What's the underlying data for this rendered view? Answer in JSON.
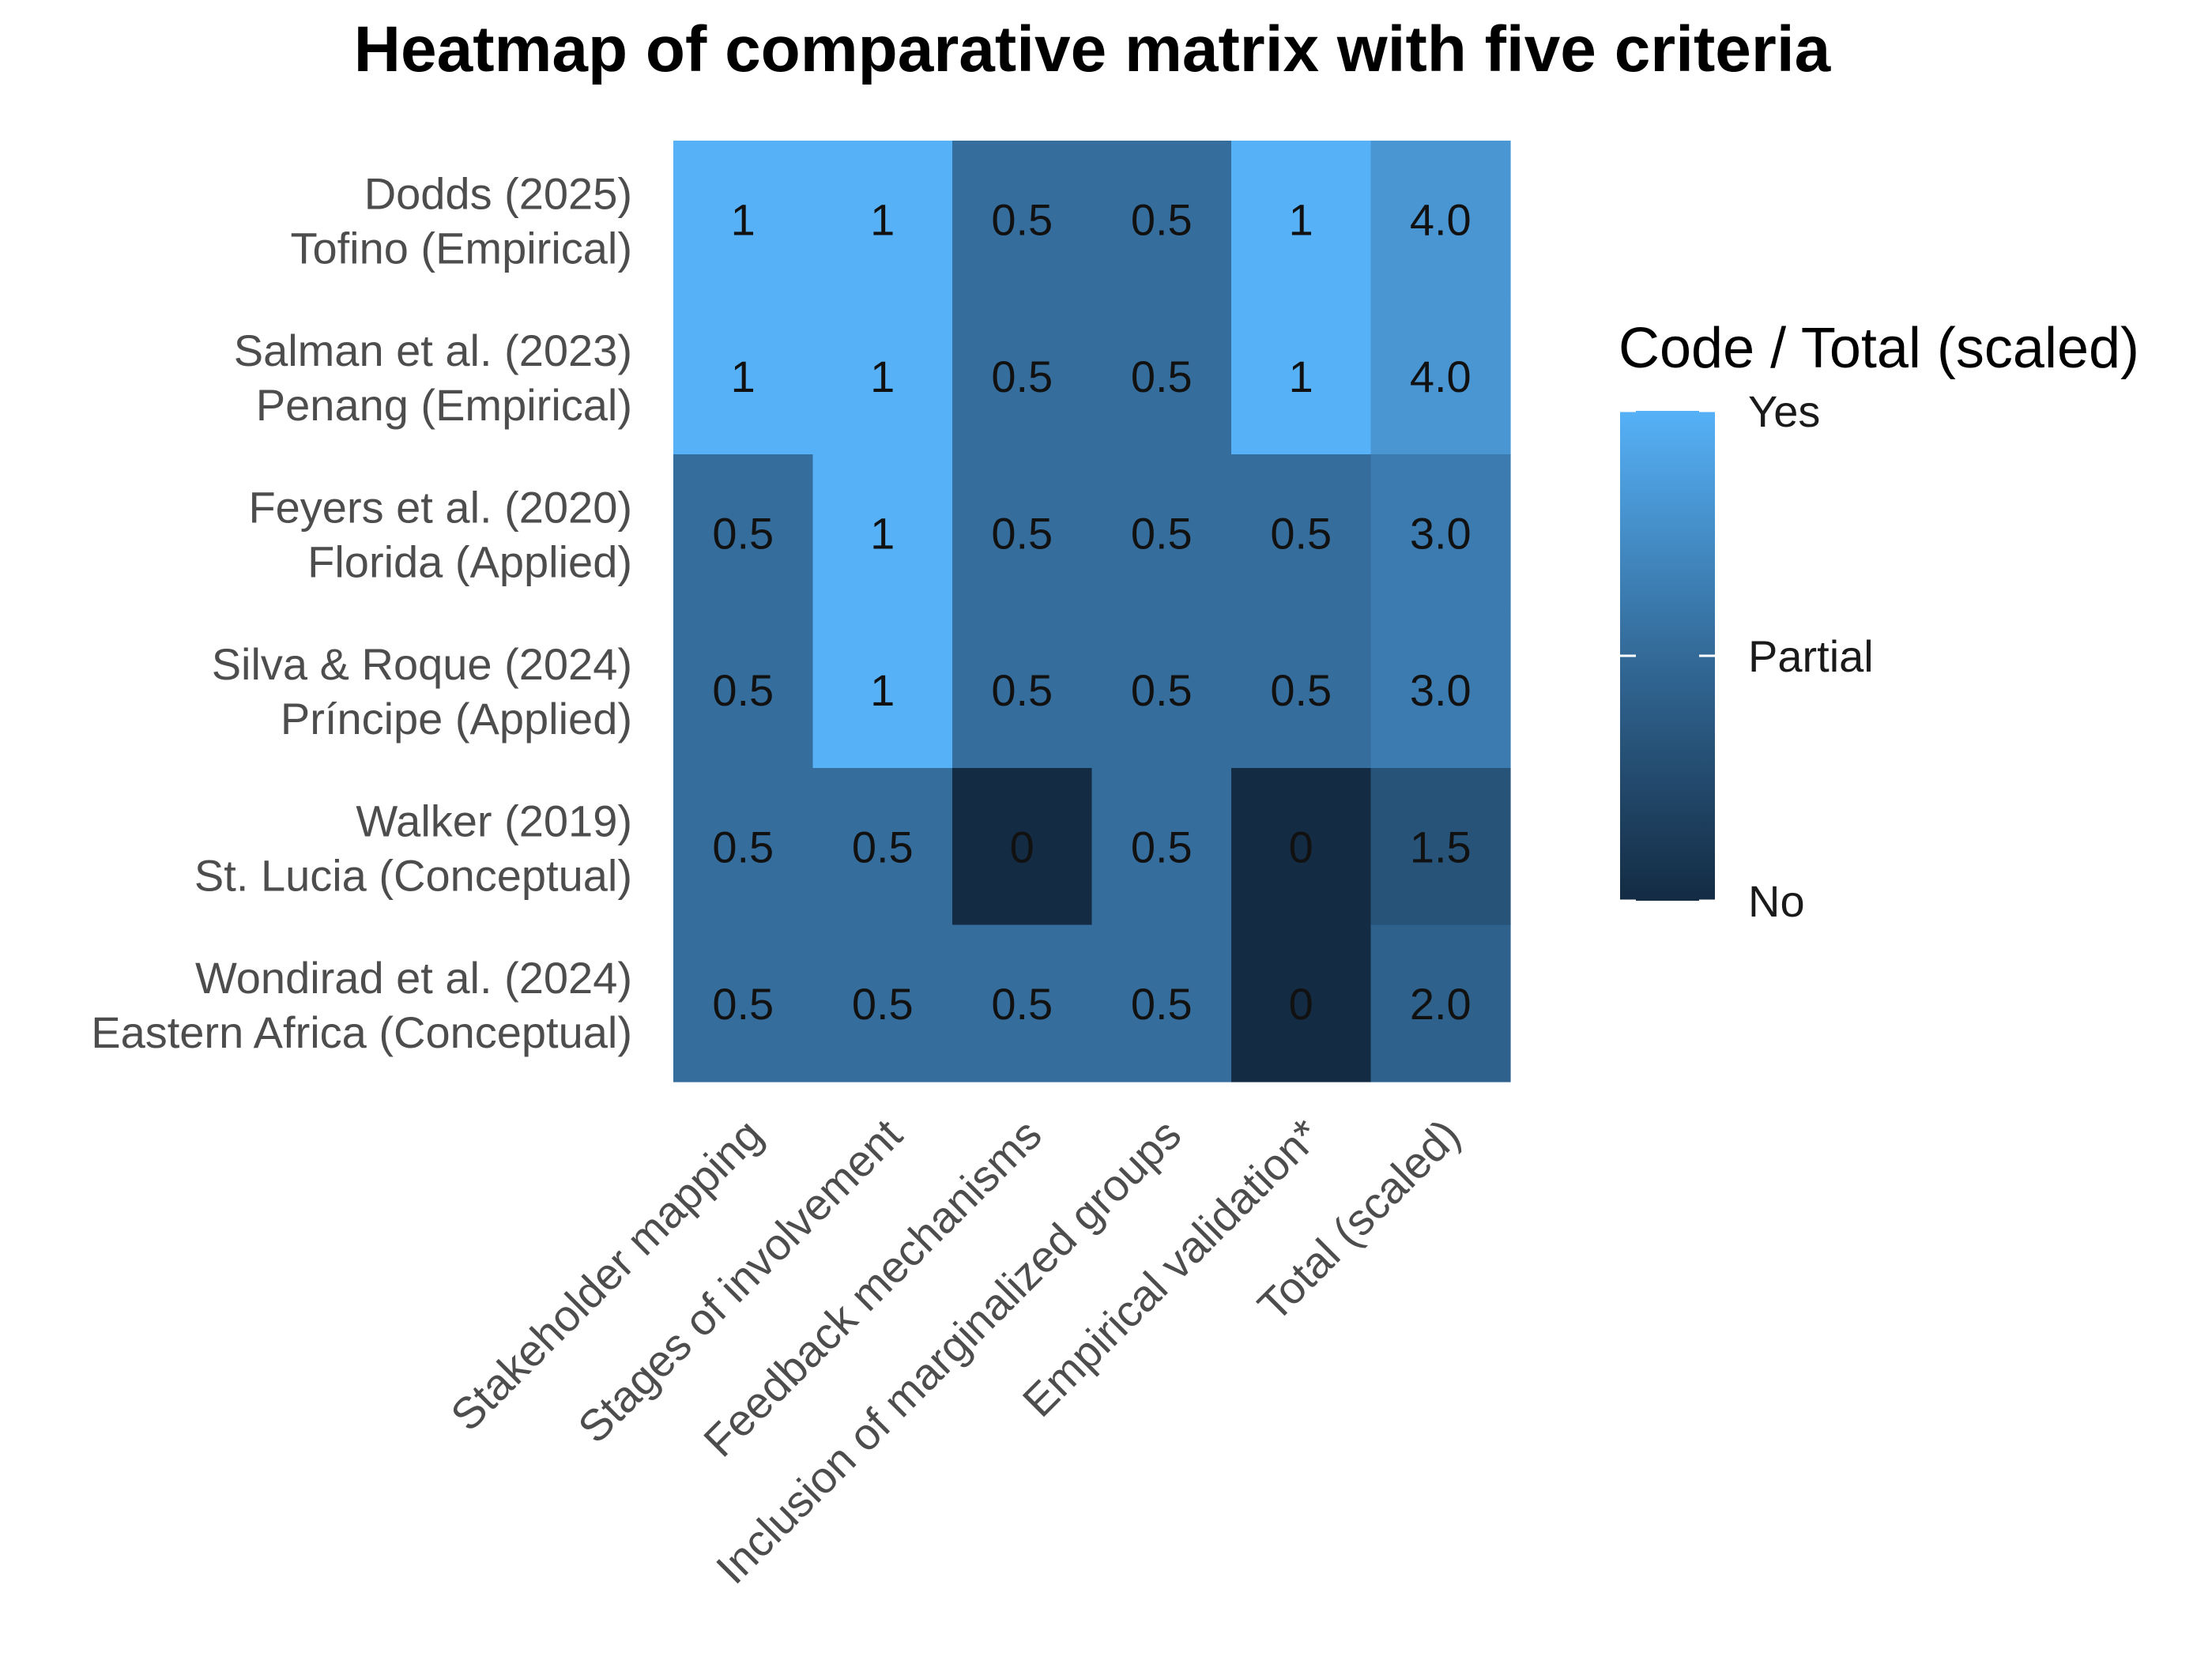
{
  "chart_data": {
    "type": "heatmap",
    "title": "Heatmap of comparative matrix with five criteria",
    "rows": [
      [
        "Dodds (2025)",
        "Tofino (Empirical)"
      ],
      [
        "Salman et al. (2023)",
        "Penang (Empirical)"
      ],
      [
        "Feyers et al. (2020)",
        "Florida (Applied)"
      ],
      [
        "Silva & Roque (2024)",
        "Príncipe (Applied)"
      ],
      [
        "Walker (2019)",
        "St. Lucia (Conceptual)"
      ],
      [
        "Wondirad et al. (2024)",
        "Eastern Africa (Conceptual)"
      ]
    ],
    "columns": [
      "Stakeholder mapping",
      "Stages of involvement",
      "Feedback mechanisms",
      "Inclusion of marginalized groups",
      "Empirical validation*",
      "Total (scaled)"
    ],
    "cell_labels": [
      [
        "1",
        "1",
        "0.5",
        "0.5",
        "1",
        "4.0"
      ],
      [
        "1",
        "1",
        "0.5",
        "0.5",
        "1",
        "4.0"
      ],
      [
        "0.5",
        "1",
        "0.5",
        "0.5",
        "0.5",
        "3.0"
      ],
      [
        "0.5",
        "1",
        "0.5",
        "0.5",
        "0.5",
        "3.0"
      ],
      [
        "0.5",
        "0.5",
        "0",
        "0.5",
        "0",
        "1.5"
      ],
      [
        "0.5",
        "0.5",
        "0.5",
        "0.5",
        "0",
        "2.0"
      ]
    ],
    "fill_values": [
      [
        1,
        1,
        0.5,
        0.5,
        1,
        0.8
      ],
      [
        1,
        1,
        0.5,
        0.5,
        1,
        0.8
      ],
      [
        0.5,
        1,
        0.5,
        0.5,
        0.5,
        0.6
      ],
      [
        0.5,
        1,
        0.5,
        0.5,
        0.5,
        0.6
      ],
      [
        0.5,
        0.5,
        0,
        0.5,
        0,
        0.3
      ],
      [
        0.5,
        0.5,
        0.5,
        0.5,
        0,
        0.4
      ]
    ],
    "legend": {
      "title": "Code / Total (scaled)",
      "labels": [
        "Yes",
        "Partial",
        "No"
      ],
      "range": [
        0,
        1
      ]
    },
    "colors": {
      "low": "#132B43",
      "high": "#56B1F7"
    }
  }
}
